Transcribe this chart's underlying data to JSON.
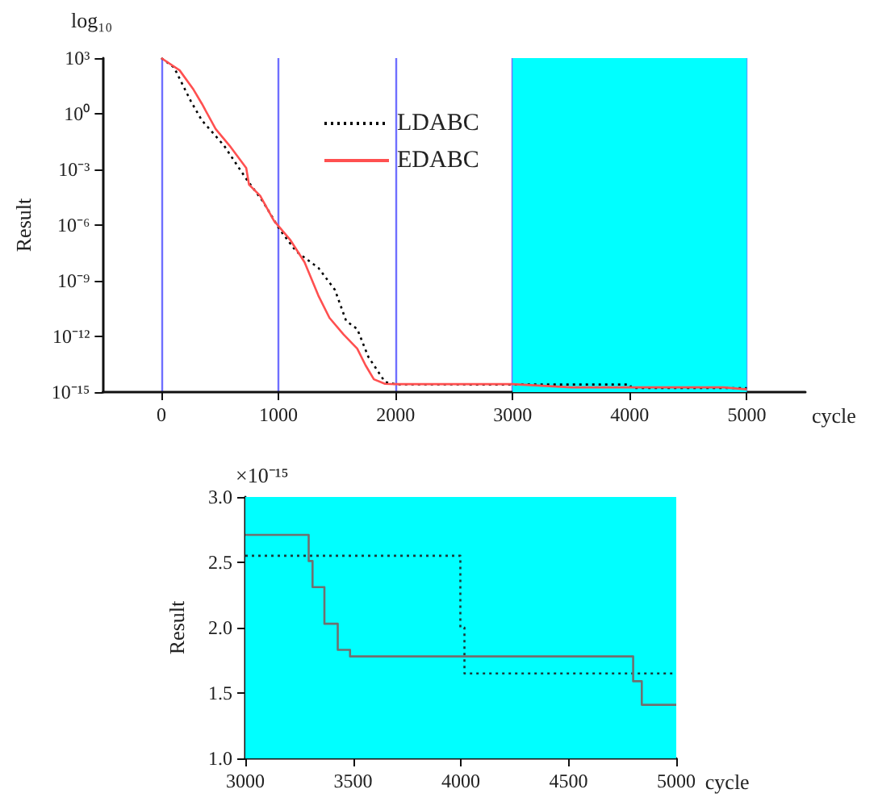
{
  "chart_data": [
    {
      "type": "line",
      "xlabel": "cycle",
      "ylabel": "Result",
      "annotations": [
        "log₁₀"
      ],
      "log": "y",
      "xlim": [
        -500,
        5500
      ],
      "xticks": [
        0,
        1000,
        2000,
        3000,
        4000,
        5000
      ],
      "ylim": [
        1e-15,
        1000
      ],
      "yticks": [
        {
          "value": 1000,
          "label": "10³"
        },
        {
          "value": 1,
          "label": "10⁰"
        },
        {
          "value": 0.001,
          "label": "10⁻³"
        },
        {
          "value": 1e-06,
          "label": "10⁻⁶"
        },
        {
          "value": 1e-09,
          "label": "10⁻⁹"
        },
        {
          "value": 1e-12,
          "label": "10⁻¹²"
        },
        {
          "value": 1e-15,
          "label": "10⁻¹⁵"
        }
      ],
      "grid": "x",
      "legend": "top",
      "marker": "none",
      "bands": [
        {
          "axis": "x",
          "from": 3000,
          "to": 5000,
          "color": "#00ffff"
        }
      ],
      "series": [
        {
          "name": "LDABC",
          "color": "#000000",
          "line_style": "dotted",
          "x": [
            0,
            109,
            251,
            346,
            536,
            725,
            867,
            1009,
            1152,
            1341,
            1483,
            1578,
            1673,
            1768,
            1910,
            2005,
            3000,
            4000,
            4017,
            5000
          ],
          "values": [
            1000,
            310,
            4.9,
            0.44,
            0.019,
            0.00031,
            1.9e-05,
            6e-07,
            3.8e-08,
            5e-09,
            3.2e-10,
            6.9e-12,
            2.5e-12,
            7.9e-14,
            3.5e-15,
            2.6e-15,
            2.55e-15,
            2.55e-15,
            1.65e-15,
            1.65e-15
          ]
        },
        {
          "name": "EDABC",
          "color": "#ff5050",
          "line_style": "solid",
          "x": [
            0,
            156,
            275,
            346,
            464,
            583,
            725,
            749,
            844,
            962,
            1104,
            1223,
            1341,
            1436,
            1555,
            1673,
            1744,
            1815,
            1910,
            2005,
            3000,
            3500,
            4800,
            5000
          ],
          "values": [
            1000,
            220,
            20,
            3.5,
            0.15,
            0.019,
            0.0012,
            0.00015,
            3.8e-05,
            1.7e-06,
            1.5e-07,
            1e-08,
            1.6e-10,
            1e-11,
            1.3e-12,
            2.2e-13,
            2.8e-14,
            4.9e-15,
            2.8e-15,
            2.7e-15,
            2.7e-15,
            1.8e-15,
            1.8e-15,
            1.4e-15
          ]
        }
      ]
    },
    {
      "type": "step",
      "xlabel": "cycle",
      "ylabel": "Result",
      "annotations": [
        "×10⁻¹⁵"
      ],
      "xlim": [
        3000,
        5000
      ],
      "xticks": [
        3000,
        3500,
        4000,
        4500,
        5000
      ],
      "ylim": [
        1,
        3
      ],
      "yticks": [
        {
          "value": 1,
          "label": "1.0"
        },
        {
          "value": 1.5,
          "label": "1.5"
        },
        {
          "value": 2,
          "label": "2.0"
        },
        {
          "value": 2.5,
          "label": "2.5"
        },
        {
          "value": 3,
          "label": "3.0"
        }
      ],
      "grid": false,
      "legend": false,
      "marker": "none",
      "bands": [
        {
          "axis": "x",
          "from": 3000,
          "to": 5000,
          "color": "#00ffff"
        }
      ],
      "series": [
        {
          "color": "#1a3a3a",
          "line_style": "dotted",
          "x": [
            3000,
            3998,
            4017,
            5000
          ],
          "values": [
            2.55,
            2.0,
            1.65,
            1.65
          ]
        },
        {
          "color": "#707070",
          "line_style": "solid",
          "x": [
            3000,
            3294,
            3312,
            3367,
            3429,
            3486,
            4800,
            4840,
            5000
          ],
          "values": [
            2.71,
            2.51,
            2.31,
            2.03,
            1.83,
            1.78,
            1.59,
            1.41,
            1.41
          ]
        }
      ]
    }
  ]
}
